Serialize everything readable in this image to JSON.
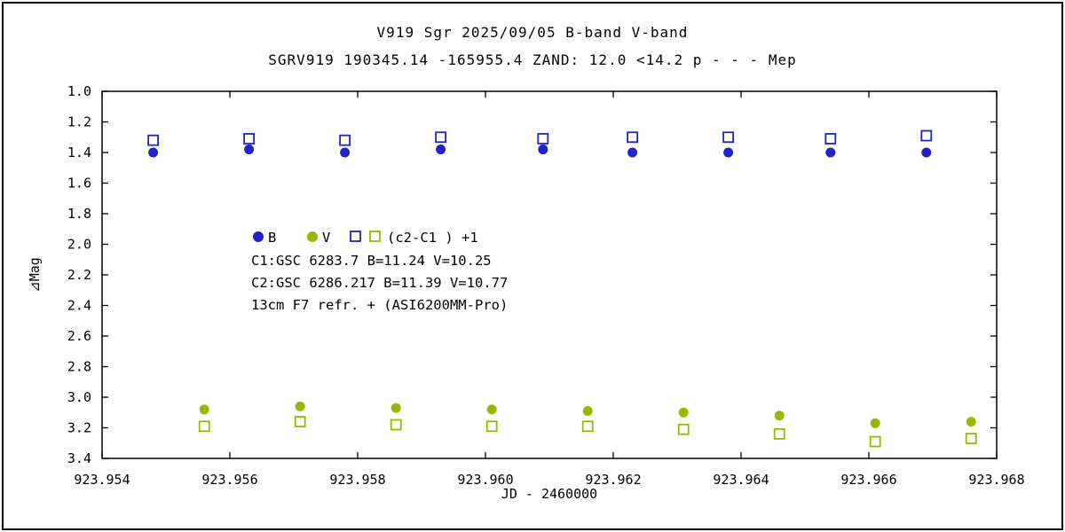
{
  "page": {
    "title": "V919 Sgr   2025/09/05   B-band   V-band",
    "subtitle": "SGRV919 190345.14 -165955.4 ZAND: 12.0 <14.2 p - - - Mep"
  },
  "colors": {
    "b_band": "#2222cc",
    "v_band": "#97b800",
    "axis": "#000000",
    "background": "#ffffff"
  },
  "legend": {
    "b_label": "B",
    "v_label": "V",
    "diff_label": "(c2-C1 ) +1"
  },
  "annotations": {
    "line1": "C1:GSC 6283.7      B=11.24  V=10.25",
    "line2": "C2:GSC 6286.217    B=11.39  V=10.77",
    "line3": "13cm  F7  refr. + (ASI6200MM-Pro)"
  },
  "chart_data": {
    "type": "scatter",
    "title": "V919 Sgr   2025/09/05   B-band   V-band",
    "subtitle": "SGRV919 190345.14 -165955.4 ZAND: 12.0 <14.2 p - - - Mep",
    "xlabel": "JD - 2460000",
    "ylabel": "⊿Mag",
    "xlim": [
      923.954,
      923.968
    ],
    "ylim": [
      1.0,
      3.4
    ],
    "y_axis_inverted_magnitude": true,
    "grid": false,
    "legend_position": "inside-left",
    "x_ticks": [
      923.954,
      923.956,
      923.958,
      923.96,
      923.962,
      923.964,
      923.966,
      923.968
    ],
    "x_tick_labels": [
      "923.954",
      "923.956",
      "923.958",
      "923.960",
      "923.962",
      "923.964",
      "923.966",
      "923.968"
    ],
    "y_ticks": [
      1.0,
      1.2,
      1.4,
      1.6,
      1.8,
      2.0,
      2.2,
      2.4,
      2.6,
      2.8,
      3.0,
      3.2,
      3.4
    ],
    "y_tick_labels": [
      "1.0",
      "1.2",
      "1.4",
      "1.6",
      "1.8",
      "2.0",
      "2.2",
      "2.4",
      "2.6",
      "2.8",
      "3.0",
      "3.2",
      "3.4"
    ],
    "series": [
      {
        "name": "B",
        "key": "b",
        "marker": "circle-filled",
        "color_key": "b_band",
        "points": [
          [
            923.9548,
            1.4
          ],
          [
            923.9563,
            1.38
          ],
          [
            923.9578,
            1.4
          ],
          [
            923.9593,
            1.38
          ],
          [
            923.9609,
            1.38
          ],
          [
            923.9623,
            1.4
          ],
          [
            923.9638,
            1.4
          ],
          [
            923.9654,
            1.4
          ],
          [
            923.9669,
            1.4
          ]
        ]
      },
      {
        "name": "B (c2-C1)+1",
        "key": "b-diff",
        "marker": "square-open",
        "color_key": "b_band",
        "points": [
          [
            923.9548,
            1.32
          ],
          [
            923.9563,
            1.31
          ],
          [
            923.9578,
            1.32
          ],
          [
            923.9593,
            1.3
          ],
          [
            923.9609,
            1.31
          ],
          [
            923.9623,
            1.3
          ],
          [
            923.9638,
            1.3
          ],
          [
            923.9654,
            1.31
          ],
          [
            923.9669,
            1.29
          ]
        ]
      },
      {
        "name": "V",
        "key": "v",
        "marker": "circle-filled",
        "color_key": "v_band",
        "points": [
          [
            923.9556,
            3.08
          ],
          [
            923.9571,
            3.06
          ],
          [
            923.9586,
            3.07
          ],
          [
            923.9601,
            3.08
          ],
          [
            923.9616,
            3.09
          ],
          [
            923.9631,
            3.1
          ],
          [
            923.9646,
            3.12
          ],
          [
            923.9661,
            3.17
          ],
          [
            923.9676,
            3.16
          ]
        ]
      },
      {
        "name": "V (c2-C1)+1",
        "key": "v-diff",
        "marker": "square-open",
        "color_key": "v_band",
        "points": [
          [
            923.9556,
            3.19
          ],
          [
            923.9571,
            3.16
          ],
          [
            923.9586,
            3.18
          ],
          [
            923.9601,
            3.19
          ],
          [
            923.9616,
            3.19
          ],
          [
            923.9631,
            3.21
          ],
          [
            923.9646,
            3.24
          ],
          [
            923.9661,
            3.29
          ],
          [
            923.9676,
            3.27
          ]
        ]
      }
    ]
  }
}
